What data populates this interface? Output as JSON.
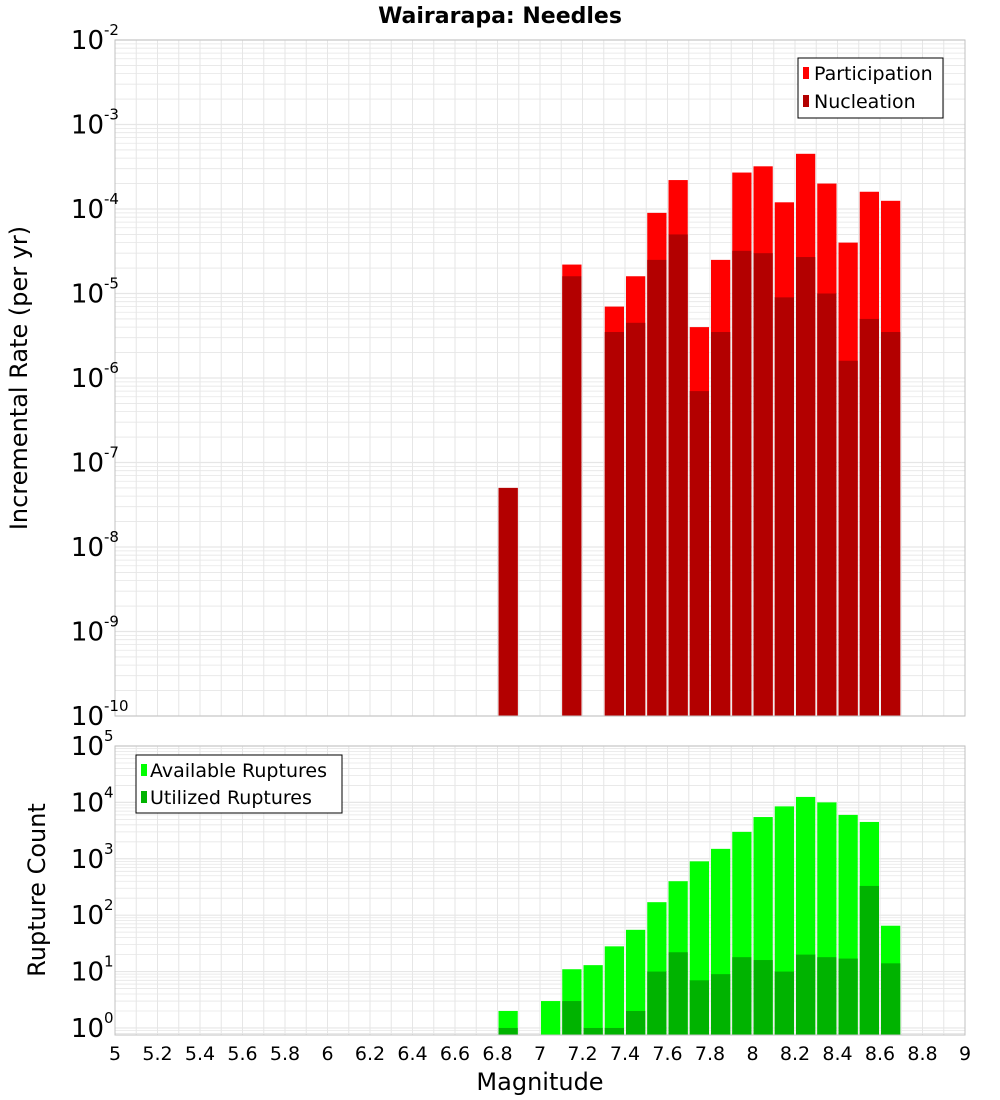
{
  "title": "Wairarapa: Needles",
  "xlabel": "Magnitude",
  "colors": {
    "participation": "#ff0000",
    "nucleation": "#b30000",
    "available": "#00ff00",
    "utilized": "#00b300",
    "grid": "#e6e6e6",
    "frame": "#c0c0c0"
  },
  "chart_data": [
    {
      "type": "bar",
      "ylabel": "Incremental Rate (per yr)",
      "yscale": "log",
      "ylim": [
        1e-10,
        0.01
      ],
      "xlim": [
        5,
        9
      ],
      "xticks": [
        "5",
        "5.2",
        "5.4",
        "5.6",
        "5.8",
        "6",
        "6.2",
        "6.4",
        "6.6",
        "6.8",
        "7",
        "7.2",
        "7.4",
        "7.6",
        "7.8",
        "8",
        "8.2",
        "8.4",
        "8.6",
        "8.8",
        "9"
      ],
      "yticks": [
        {
          "base": "10",
          "exp": "-10"
        },
        {
          "base": "10",
          "exp": "-9"
        },
        {
          "base": "10",
          "exp": "-8"
        },
        {
          "base": "10",
          "exp": "-7"
        },
        {
          "base": "10",
          "exp": "-6"
        },
        {
          "base": "10",
          "exp": "-5"
        },
        {
          "base": "10",
          "exp": "-4"
        },
        {
          "base": "10",
          "exp": "-3"
        },
        {
          "base": "10",
          "exp": "-2"
        }
      ],
      "legend_position": "top-right",
      "bin_width": 0.1,
      "x": [
        6.85,
        7.15,
        7.35,
        7.45,
        7.55,
        7.65,
        7.75,
        7.85,
        7.95,
        8.05,
        8.15,
        8.25,
        8.35,
        8.45,
        8.55,
        8.65
      ],
      "series": [
        {
          "name": "Participation",
          "values": [
            5e-08,
            2.2e-05,
            7e-06,
            1.6e-05,
            9e-05,
            0.00022,
            4e-06,
            2.5e-05,
            0.00027,
            0.00032,
            0.00012,
            0.00045,
            0.0002,
            4e-05,
            0.00016,
            0.000125
          ]
        },
        {
          "name": "Nucleation",
          "values": [
            5e-08,
            1.6e-05,
            3.5e-06,
            4.5e-06,
            2.5e-05,
            5e-05,
            7e-07,
            3.5e-06,
            3.2e-05,
            3e-05,
            9e-06,
            2.7e-05,
            1e-05,
            1.6e-06,
            5e-06,
            3.5e-06
          ]
        }
      ]
    },
    {
      "type": "bar",
      "ylabel": "Rupture Count",
      "yscale": "log",
      "ylim": [
        0.75,
        100000
      ],
      "xlim": [
        5,
        9
      ],
      "yticks": [
        {
          "base": "10",
          "exp": "0"
        },
        {
          "base": "10",
          "exp": "1"
        },
        {
          "base": "10",
          "exp": "2"
        },
        {
          "base": "10",
          "exp": "3"
        },
        {
          "base": "10",
          "exp": "4"
        },
        {
          "base": "10",
          "exp": "5"
        }
      ],
      "legend_position": "top-left",
      "bin_width": 0.1,
      "x": [
        6.85,
        7.05,
        7.15,
        7.25,
        7.35,
        7.45,
        7.55,
        7.65,
        7.75,
        7.85,
        7.95,
        8.05,
        8.15,
        8.25,
        8.35,
        8.45,
        8.55,
        8.65
      ],
      "series": [
        {
          "name": "Available Ruptures",
          "values": [
            2,
            3,
            11,
            13,
            28,
            55,
            170,
            400,
            900,
            1500,
            3000,
            5500,
            8500,
            12500,
            10000,
            6000,
            4500,
            65
          ]
        },
        {
          "name": "Utilized Ruptures",
          "values": [
            1,
            0,
            3,
            1,
            1,
            2,
            10,
            22,
            7,
            9,
            18,
            16,
            10,
            20,
            18,
            17,
            330,
            14
          ]
        }
      ]
    }
  ]
}
